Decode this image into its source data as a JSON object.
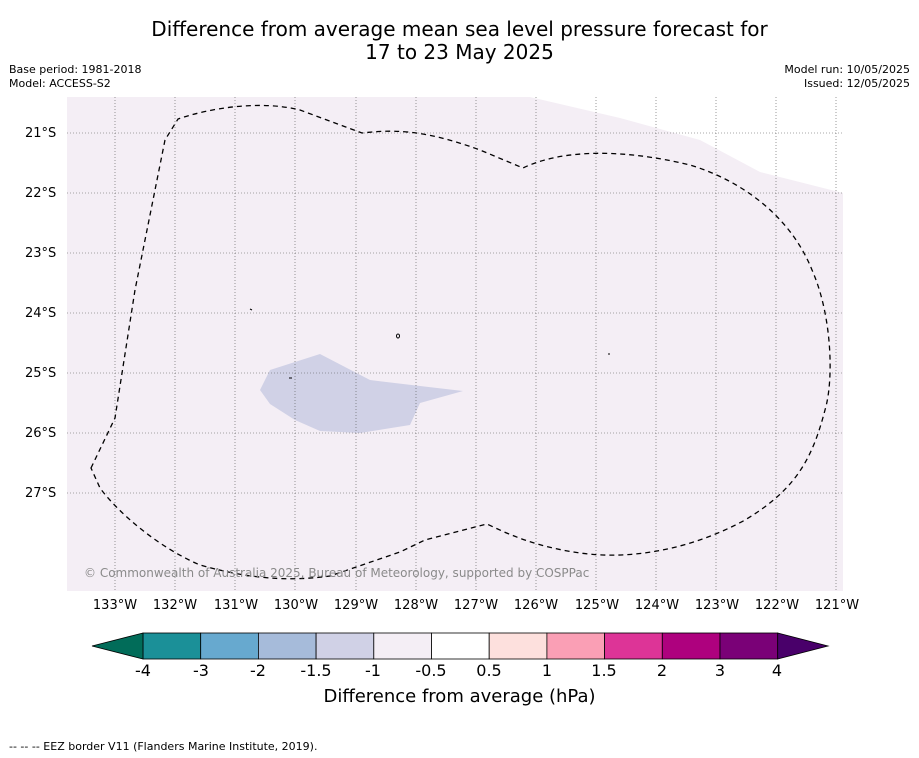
{
  "title_line1": "Difference from average mean sea level pressure forecast for",
  "title_line2": "17 to 23 May 2025",
  "base_period": "Base period: 1981-2018",
  "model": "Model: ACCESS-S2",
  "model_run": "Model run: 10/05/2025",
  "issued": "Issued: 12/05/2025",
  "lat_labels": [
    "21°S",
    "22°S",
    "23°S",
    "24°S",
    "25°S",
    "26°S",
    "27°S"
  ],
  "lon_labels": [
    "133°W",
    "132°W",
    "131°W",
    "130°W",
    "129°W",
    "128°W",
    "127°W",
    "126°W",
    "125°W",
    "124°W",
    "123°W",
    "122°W",
    "121°W"
  ],
  "copyright": "© Commonwealth of Australia 2025, Bureau of Meteorology, supported by COSPPac",
  "colorbar": {
    "ticks": [
      "-4",
      "-3",
      "-2",
      "-1.5",
      "-1",
      "-0.5",
      "0.5",
      "1",
      "1.5",
      "2",
      "3",
      "4"
    ],
    "label": "Difference from average (hPa)",
    "colors": [
      "#1b9098",
      "#67a9cf",
      "#a6bbda",
      "#d0d1e6",
      "#f4eef5",
      "#ffffff",
      "#fde0dd",
      "#fa9fb5",
      "#dd3497",
      "#ae017e",
      "#7a0177"
    ],
    "low_extend": "#016c59",
    "high_extend": "#49006a"
  },
  "legend_footer": "--  --  -- EEZ border V11 (Flanders Marine Institute, 2019).",
  "fill_colors": {
    "background": "#f4eef5",
    "negative_patch": "#d0d1e6"
  }
}
